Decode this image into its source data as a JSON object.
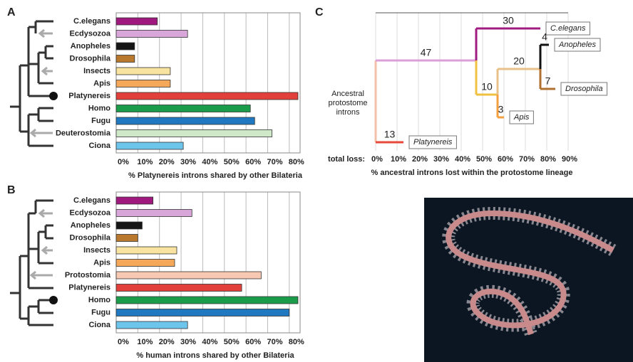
{
  "chart_data": [
    {
      "type": "hbar",
      "panel": "A",
      "categories": [
        "C.elegans",
        "Ecdysozoa",
        "Anopheles",
        "Drosophila",
        "Insects",
        "Apis",
        "Platynereis",
        "Homo",
        "Fugu",
        "Deuterostomia",
        "Ciona"
      ],
      "values": [
        19,
        33,
        8.5,
        8.5,
        25,
        25,
        84,
        62,
        64,
        72,
        31
      ],
      "colors": [
        "#a0197f",
        "#d9a6d9",
        "#151515",
        "#b8782e",
        "#f8e4a0",
        "#f5a85a",
        "#e2403a",
        "#1a9c4a",
        "#1f78c0",
        "#cfe8c8",
        "#6ec5ec"
      ],
      "xlim": [
        0,
        85
      ],
      "xticks": [
        {
          "value": 0,
          "label": "0%"
        },
        {
          "value": 10,
          "label": "10%"
        },
        {
          "value": 20,
          "label": "20%"
        },
        {
          "value": 30,
          "label": "30%"
        },
        {
          "value": 40,
          "label": "40%"
        },
        {
          "value": 50,
          "label": "50%"
        },
        {
          "value": 60,
          "label": "60%"
        },
        {
          "value": 70,
          "label": "70%"
        },
        {
          "value": 80,
          "label": "80%"
        }
      ],
      "xlabel": "% Platynereis introns shared by other Bilateria",
      "grid": true
    },
    {
      "type": "hbar",
      "panel": "B",
      "categories": [
        "C.elegans",
        "Ecdysozoa",
        "Anopheles",
        "Drosophila",
        "Insects",
        "Apis",
        "Protostomia",
        "Platynereis",
        "Homo",
        "Fugu",
        "Ciona"
      ],
      "values": [
        17,
        35,
        12,
        10,
        28,
        27,
        67,
        58,
        84,
        80,
        33
      ],
      "colors": [
        "#a0197f",
        "#d9a6d9",
        "#151515",
        "#b8782e",
        "#f8e4a0",
        "#f5a85a",
        "#f7c8b2",
        "#e2403a",
        "#1a9c4a",
        "#1f78c0",
        "#6ec5ec"
      ],
      "xlim": [
        0,
        85
      ],
      "xticks": [
        {
          "value": 0,
          "label": "0%"
        },
        {
          "value": 10,
          "label": "10%"
        },
        {
          "value": 20,
          "label": "20%"
        },
        {
          "value": 30,
          "label": "30%"
        },
        {
          "value": 40,
          "label": "40%"
        },
        {
          "value": 50,
          "label": "50%"
        },
        {
          "value": 60,
          "label": "60%"
        },
        {
          "value": 70,
          "label": "70%"
        },
        {
          "value": 80,
          "label": "80%"
        }
      ],
      "xlabel": "% human introns shared by other Bilateria",
      "grid": true
    },
    {
      "type": "tree",
      "panel": "C",
      "root_label": [
        "Ancestral",
        "protostome",
        "introns"
      ],
      "root_color": "#f5c0a8",
      "branches": [
        {
          "name": "Platynereis",
          "value": 13,
          "color": "#e8483a",
          "parent": null
        },
        {
          "value": 47,
          "color": "#dca0d8",
          "parent": null
        },
        {
          "name": "C.elegans",
          "value": 30,
          "color": "#a01c80",
          "parent": 1
        },
        {
          "value": 10,
          "color": "#f0c040",
          "parent": 1
        },
        {
          "name": "Apis",
          "value": 3,
          "color": "#f5a040",
          "parent": 3
        },
        {
          "value": 20,
          "color": "#e8c088",
          "parent": 3
        },
        {
          "name": "Anopheles",
          "value": 4,
          "color": "#111111",
          "parent": 5
        },
        {
          "name": "Drosophila",
          "value": 7,
          "color": "#b07030",
          "parent": 5
        }
      ],
      "xlim": [
        0,
        90
      ],
      "xticks_title": "total loss:",
      "xticks": [
        {
          "value": 0,
          "label": "0%"
        },
        {
          "value": 10,
          "label": "10%"
        },
        {
          "value": 20,
          "label": "20%"
        },
        {
          "value": 30,
          "label": "30%"
        },
        {
          "value": 40,
          "label": "40%"
        },
        {
          "value": 50,
          "label": "50%"
        },
        {
          "value": 60,
          "label": "60%"
        },
        {
          "value": 70,
          "label": "70%"
        },
        {
          "value": 80,
          "label": "80%"
        },
        {
          "value": 90,
          "label": "90%"
        }
      ],
      "xlabel": "% ancestral introns lost within the protostome lineage",
      "grid": true
    }
  ]
}
